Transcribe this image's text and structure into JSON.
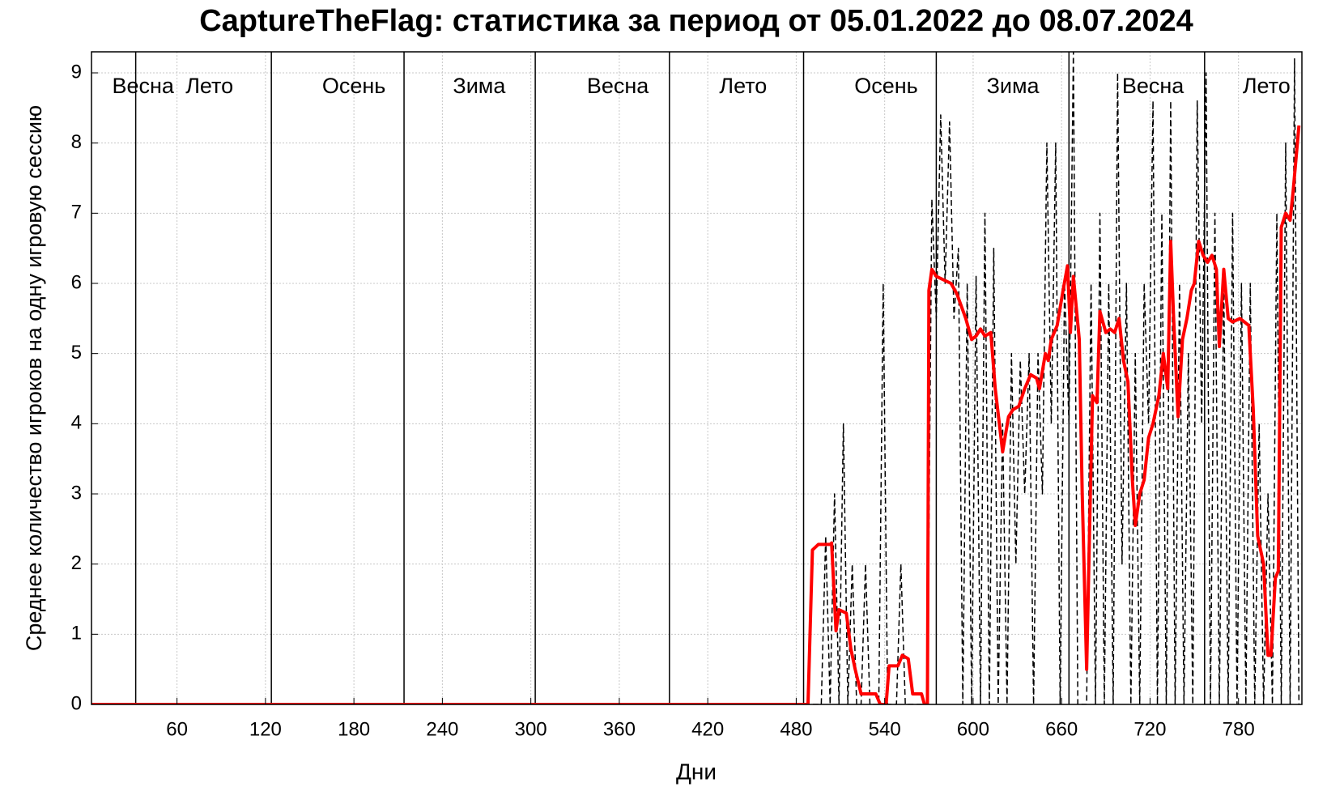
{
  "chart_data": {
    "type": "line",
    "title": "CaptureTheFlag: статистика за период от 05.01.2022 до 08.07.2024",
    "xlabel": "Дни",
    "ylabel": "Среднее количество игроков на одну игровую сессию",
    "xlim": [
      2,
      823
    ],
    "ylim": [
      0,
      9.3
    ],
    "xticks": [
      60,
      120,
      180,
      240,
      300,
      360,
      420,
      480,
      540,
      600,
      660,
      720,
      780
    ],
    "yticks": [
      0,
      1,
      2,
      3,
      4,
      5,
      6,
      7,
      8,
      9
    ],
    "grid": true,
    "season_boundaries": [
      32,
      124,
      214,
      303,
      394,
      485,
      575,
      665,
      757
    ],
    "annotations": [
      {
        "text": "Весна",
        "x": 37
      },
      {
        "text": "Лето",
        "x": 82
      },
      {
        "text": "Осень",
        "x": 180
      },
      {
        "text": "Зима",
        "x": 265
      },
      {
        "text": "Весна",
        "x": 359
      },
      {
        "text": "Лето",
        "x": 444
      },
      {
        "text": "Осень",
        "x": 541
      },
      {
        "text": "Зима",
        "x": 627
      },
      {
        "text": "Весна",
        "x": 722
      },
      {
        "text": "Лето",
        "x": 799
      }
    ],
    "series": [
      {
        "color": "#000000",
        "dash": true,
        "x": [
          2,
          497,
          500,
          503,
          506,
          509,
          512,
          515,
          518,
          521,
          524,
          527,
          530,
          533,
          536,
          539,
          542,
          545,
          548,
          551,
          554,
          557,
          560,
          563,
          566,
          569,
          572,
          575,
          578,
          581,
          584,
          587,
          590,
          593,
          596,
          599,
          602,
          605,
          608,
          611,
          614,
          617,
          620,
          623,
          626,
          629,
          632,
          635,
          638,
          641,
          644,
          647,
          650,
          653,
          656,
          659,
          662,
          665,
          668,
          671,
          674,
          677,
          680,
          683,
          686,
          689,
          692,
          695,
          698,
          701,
          704,
          707,
          710,
          713,
          716,
          719,
          722,
          725,
          728,
          731,
          734,
          737,
          740,
          743,
          746,
          749,
          752,
          755,
          758,
          761,
          764,
          767,
          770,
          773,
          776,
          779,
          782,
          785,
          788,
          791,
          794,
          797,
          800,
          803,
          806,
          809,
          812,
          815,
          818,
          821
        ],
        "values": [
          0,
          0,
          2.4,
          0,
          3,
          0,
          4,
          0,
          2,
          0,
          0,
          2,
          0,
          0,
          0,
          6,
          0,
          0,
          0,
          2,
          0,
          0,
          0,
          0,
          0,
          0,
          7.2,
          5.5,
          8.4,
          6,
          8.3,
          5.5,
          6.5,
          0,
          6,
          0,
          6.1,
          0,
          7,
          0,
          6.5,
          0,
          4,
          0,
          5,
          2,
          4.9,
          3,
          5,
          0,
          5,
          3,
          8,
          4,
          8,
          0,
          6,
          4,
          9.3,
          0,
          0,
          0,
          6,
          0,
          7,
          0,
          6,
          0,
          9,
          2,
          6,
          0,
          5,
          0,
          6,
          4,
          8.6,
          0,
          7,
          0,
          8.6,
          0,
          6,
          0,
          5,
          0,
          8.6,
          4,
          9,
          0,
          7,
          0,
          6,
          0,
          7,
          0,
          6,
          0,
          6,
          0,
          4,
          0,
          3,
          0,
          7,
          0,
          8,
          0,
          9.2,
          0
        ]
      },
      {
        "color": "#ff0000",
        "dash": false,
        "x": [
          2,
          488,
          491,
          495,
          503,
          504,
          507,
          509,
          514,
          517,
          520,
          524,
          534,
          537,
          541,
          543,
          549,
          552,
          556,
          559,
          565,
          567,
          569,
          570,
          572,
          575,
          585,
          589,
          595,
          599,
          602,
          605,
          608,
          612,
          615,
          620,
          624,
          627,
          631,
          635,
          639,
          643,
          645,
          649,
          651,
          653,
          657,
          661,
          664,
          666,
          668,
          672,
          674,
          677,
          679,
          681,
          684,
          686,
          690,
          693,
          696,
          699,
          702,
          705,
          708,
          710,
          713,
          716,
          719,
          722,
          726,
          729,
          732,
          734,
          736,
          739,
          742,
          745,
          748,
          750,
          753,
          756,
          759,
          762,
          765,
          767,
          770,
          773,
          776,
          781,
          787,
          790,
          793,
          797,
          800,
          802,
          805,
          807,
          809,
          812,
          815,
          817,
          821
        ],
        "values": [
          0,
          0,
          2.2,
          2.28,
          2.28,
          2.3,
          1.05,
          1.35,
          1.3,
          0.8,
          0.5,
          0.15,
          0.15,
          0,
          0,
          0.55,
          0.55,
          0.7,
          0.65,
          0.15,
          0.15,
          0,
          0,
          5.9,
          6.2,
          6.1,
          6.0,
          5.85,
          5.5,
          5.2,
          5.25,
          5.35,
          5.25,
          5.3,
          4.5,
          3.6,
          4.1,
          4.2,
          4.25,
          4.5,
          4.7,
          4.65,
          4.5,
          5.0,
          4.9,
          5.2,
          5.4,
          5.9,
          6.25,
          5.3,
          6.1,
          5.2,
          3.0,
          0.5,
          2.5,
          4.4,
          4.3,
          5.6,
          5.3,
          5.35,
          5.3,
          5.5,
          4.9,
          4.6,
          3.2,
          2.55,
          3.0,
          3.2,
          3.8,
          4.0,
          4.4,
          5.0,
          4.5,
          6.6,
          5.5,
          4.1,
          5.2,
          5.5,
          5.9,
          6.0,
          6.6,
          6.4,
          6.3,
          6.4,
          6.2,
          5.1,
          6.2,
          5.5,
          5.45,
          5.5,
          5.4,
          4.2,
          2.4,
          2.0,
          0.7,
          0.7,
          1.8,
          1.9,
          6.8,
          7.0,
          6.9,
          7.3,
          8.25
        ]
      }
    ]
  }
}
